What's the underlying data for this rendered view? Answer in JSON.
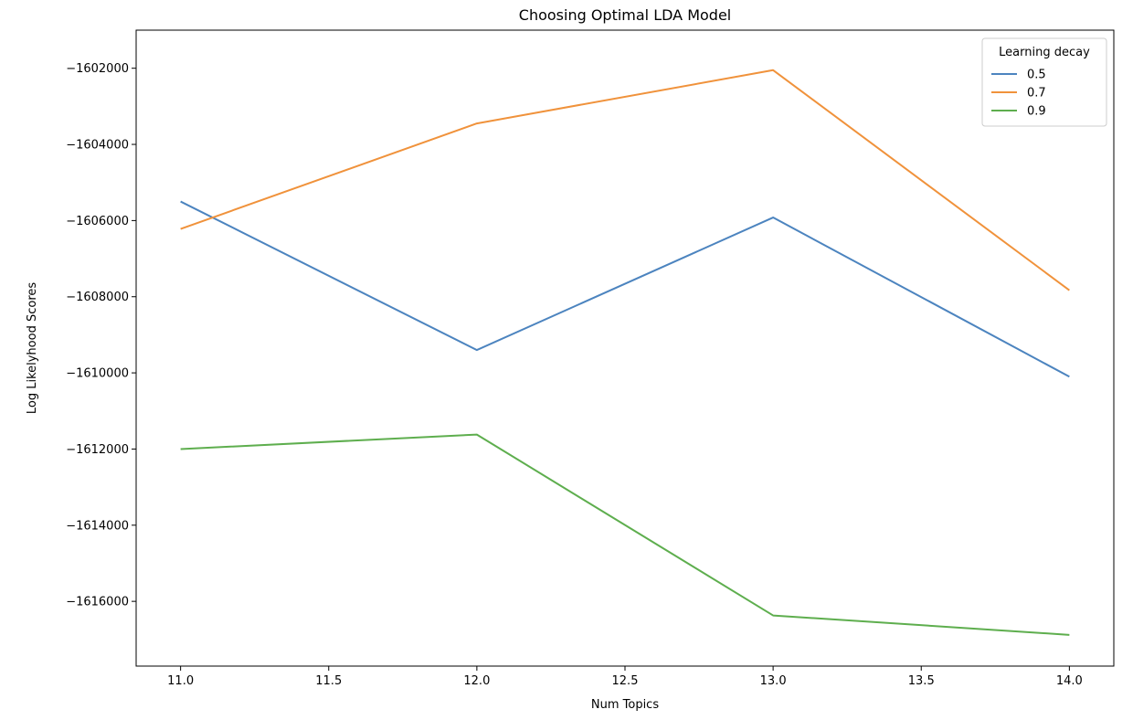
{
  "chart_data": {
    "type": "line",
    "title": "Choosing Optimal LDA Model",
    "xlabel": "Num Topics",
    "ylabel": "Log Likelyhood Scores",
    "x": [
      11.0,
      12.0,
      13.0,
      14.0
    ],
    "xlim": [
      10.85,
      14.15
    ],
    "ylim": [
      -1617700,
      -1601000
    ],
    "x_ticks": [
      {
        "value": 11.0,
        "label": "11.0"
      },
      {
        "value": 11.5,
        "label": "11.5"
      },
      {
        "value": 12.0,
        "label": "12.0"
      },
      {
        "value": 12.5,
        "label": "12.5"
      },
      {
        "value": 13.0,
        "label": "13.0"
      },
      {
        "value": 13.5,
        "label": "13.5"
      },
      {
        "value": 14.0,
        "label": "14.0"
      }
    ],
    "y_ticks": [
      {
        "value": -1602000,
        "label": "−1602000"
      },
      {
        "value": -1604000,
        "label": "−1604000"
      },
      {
        "value": -1606000,
        "label": "−1606000"
      },
      {
        "value": -1608000,
        "label": "−1608000"
      },
      {
        "value": -1610000,
        "label": "−1610000"
      },
      {
        "value": -1612000,
        "label": "−1612000"
      },
      {
        "value": -1614000,
        "label": "−1614000"
      },
      {
        "value": -1616000,
        "label": "−1616000"
      }
    ],
    "legend": {
      "title": "Learning decay",
      "position": "top-right"
    },
    "grid": false,
    "series": [
      {
        "name": "0.5",
        "color": "#4c84bf",
        "values": [
          -1605500,
          -1609400,
          -1605920,
          -1610100
        ]
      },
      {
        "name": "0.7",
        "color": "#f0923b",
        "values": [
          -1606220,
          -1603450,
          -1602050,
          -1607830
        ]
      },
      {
        "name": "0.9",
        "color": "#5eae4e",
        "values": [
          -1612000,
          -1611620,
          -1616370,
          -1616880
        ]
      }
    ]
  }
}
